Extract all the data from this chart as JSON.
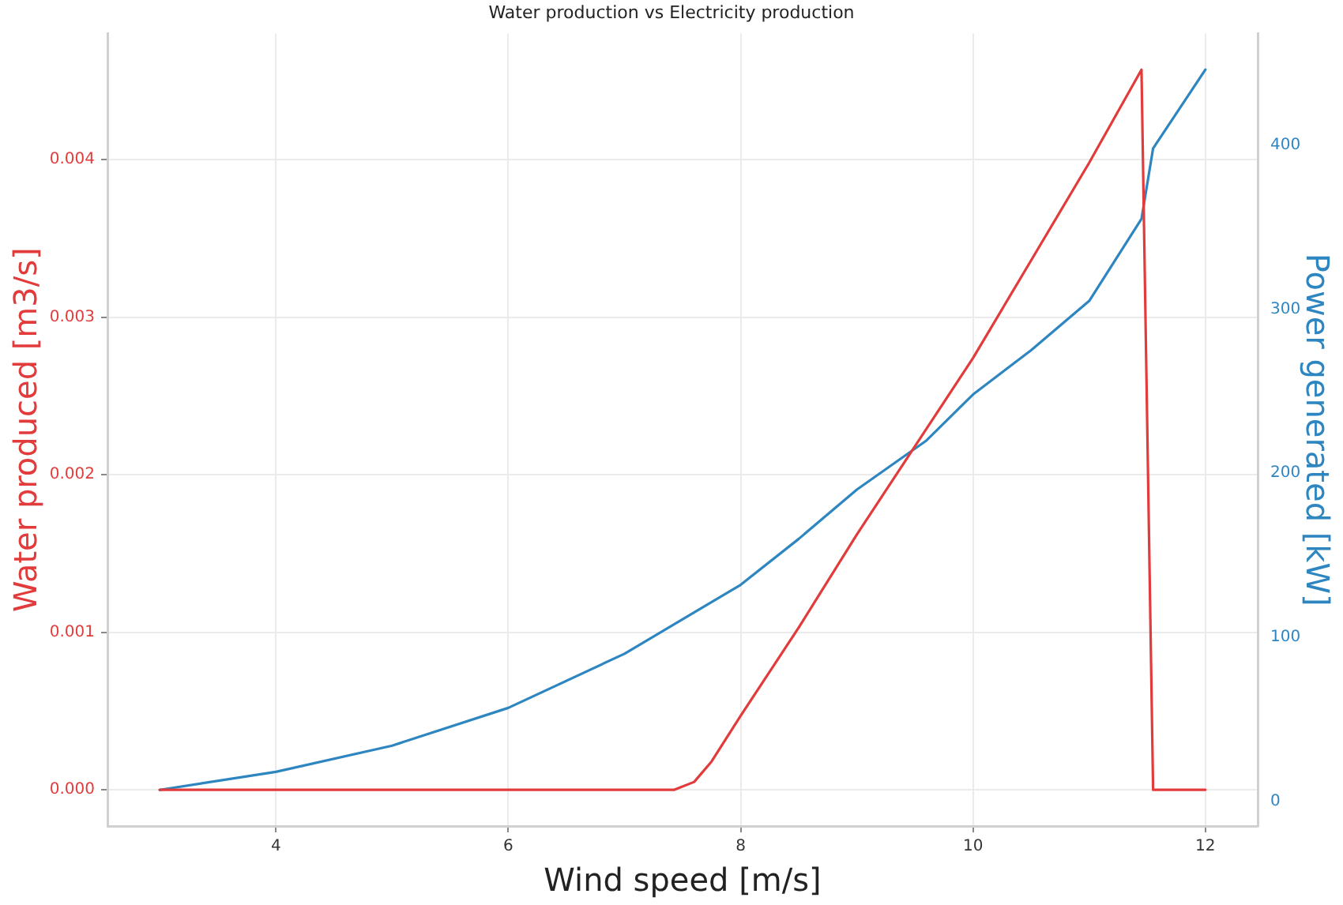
{
  "chart_data": {
    "type": "line",
    "title": "Water production vs Electricity production",
    "xlabel": "Wind speed [m/s]",
    "ylabel": "Water produced [m3/s]",
    "y2label": "Power generated [kW]",
    "xlim": [
      2.55,
      12.45
    ],
    "xticks": [
      4,
      6,
      8,
      10,
      12
    ],
    "ylim": [
      -0.00023,
      0.0048
    ],
    "yticks": [
      {
        "value": 0,
        "label": "0.000"
      },
      {
        "value": 0.001,
        "label": "0.001"
      },
      {
        "value": 0.002,
        "label": "0.002"
      },
      {
        "value": 0.003,
        "label": "0.003"
      },
      {
        "value": 0.004,
        "label": "0.004"
      }
    ],
    "y2lim": [
      -15,
      468
    ],
    "y2ticks": [
      0,
      100,
      200,
      300,
      400
    ],
    "grid": true,
    "marker": "none",
    "line_style": "solid",
    "series": [
      {
        "color": "#e23b3b",
        "x": [
          3,
          4,
          5,
          6,
          7,
          7.43,
          7.6,
          7.75,
          8,
          8.5,
          9,
          9.5,
          10,
          10.5,
          11,
          11.45,
          11.55,
          12
        ],
        "values": [
          0,
          0,
          0,
          0,
          0,
          0,
          5e-05,
          0.00018,
          0.00047,
          0.00103,
          0.00162,
          0.00218,
          0.00274,
          0.00336,
          0.00398,
          0.00457,
          0,
          0
        ]
      },
      {
        "color": "#2e86c1",
        "axis": "y2",
        "x": [
          3,
          4,
          5,
          6,
          7,
          8,
          8.5,
          9,
          9.6,
          10,
          10.5,
          11,
          11.45,
          11.55,
          12
        ],
        "values": [
          7,
          18,
          34,
          57,
          90,
          132,
          160,
          190,
          220,
          248,
          275,
          305,
          355,
          398,
          446
        ]
      }
    ]
  }
}
